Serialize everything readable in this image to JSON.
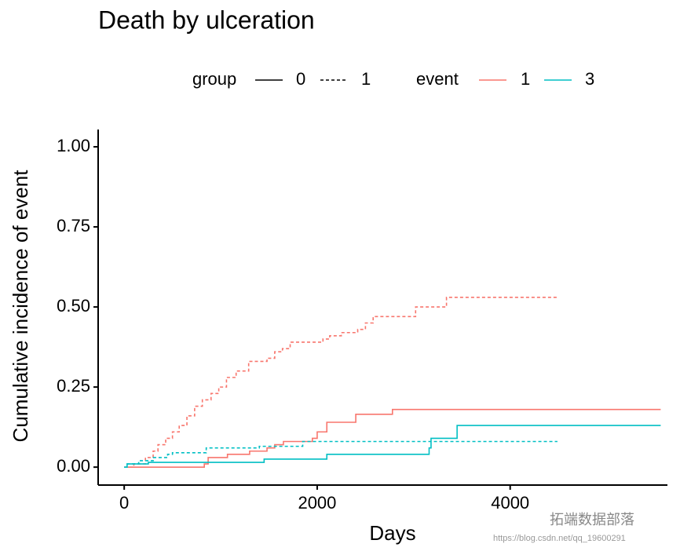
{
  "chart_data": {
    "type": "step",
    "title": "Death by ulceration",
    "x_label": "Days",
    "y_label": "Cumulative incidence of event",
    "xlim": [
      -270,
      5630
    ],
    "ylim": [
      -0.056,
      1.054
    ],
    "xticks": [
      0,
      2000,
      4000
    ],
    "yticks": [
      {
        "value": 0,
        "label": "0.00"
      },
      0.25,
      {
        "value": 0.5,
        "label": "0.50"
      },
      0.75,
      {
        "value": 1,
        "label": "1.00"
      }
    ],
    "legend": {
      "group": {
        "title": "group",
        "labels": [
          "0",
          "1"
        ],
        "linestyles": [
          "solid",
          "dashed"
        ]
      },
      "event": {
        "title": "event",
        "labels": [
          "1",
          "3"
        ],
        "colors": [
          "#f8766d",
          "#00bfc4"
        ]
      }
    },
    "series": [
      {
        "color": "#f8766d",
        "linestyle": "solid",
        "x": [
          0,
          830,
          870,
          1070,
          1300,
          1480,
          1560,
          1650,
          1950,
          2000,
          2100,
          2400,
          2780,
          5560
        ],
        "values": [
          0,
          0.01,
          0.03,
          0.04,
          0.05,
          0.06,
          0.07,
          0.08,
          0.09,
          0.11,
          0.14,
          0.165,
          0.18,
          0.18
        ]
      },
      {
        "color": "#f8766d",
        "linestyle": "dashed",
        "x": [
          0,
          100,
          220,
          300,
          350,
          430,
          500,
          570,
          650,
          730,
          810,
          900,
          980,
          1060,
          1160,
          1290,
          1480,
          1560,
          1640,
          1720,
          2060,
          2130,
          2250,
          2420,
          2500,
          2580,
          3020,
          3340,
          4490
        ],
        "values": [
          0,
          0.01,
          0.03,
          0.05,
          0.07,
          0.09,
          0.11,
          0.13,
          0.16,
          0.19,
          0.21,
          0.23,
          0.25,
          0.28,
          0.3,
          0.33,
          0.34,
          0.36,
          0.37,
          0.39,
          0.4,
          0.41,
          0.42,
          0.43,
          0.45,
          0.47,
          0.5,
          0.53,
          0.53
        ]
      },
      {
        "color": "#00bfc4",
        "linestyle": "solid",
        "x": [
          0,
          30,
          250,
          1450,
          2100,
          3160,
          3180,
          3450,
          5560
        ],
        "values": [
          0,
          0.01,
          0.015,
          0.025,
          0.04,
          0.06,
          0.09,
          0.13,
          0.13
        ]
      },
      {
        "color": "#00bfc4",
        "linestyle": "dashed",
        "x": [
          0,
          30,
          150,
          300,
          450,
          500,
          850,
          1400,
          1850,
          4490
        ],
        "values": [
          0,
          0.01,
          0.02,
          0.03,
          0.04,
          0.045,
          0.06,
          0.065,
          0.08,
          0.08
        ]
      }
    ],
    "watermark": [
      "拓端数据部落",
      "https://blog.csdn.net/qq_19600291"
    ]
  }
}
